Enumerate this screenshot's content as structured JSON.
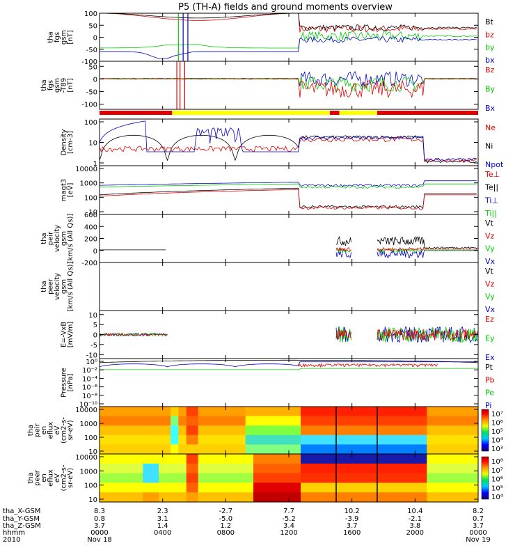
{
  "title": "P5 (TH-A) fields and ground moments overview",
  "colors": {
    "black": "#000000",
    "red": "#e00000",
    "green": "#00cc00",
    "blue": "#0000cc",
    "yellow": "#ffff00"
  },
  "chart_data": {
    "type": "line",
    "x_axis": {
      "time_ticks": [
        "0000",
        "0400",
        "0800",
        "1200",
        "1600",
        "2000",
        "0000"
      ],
      "tick_hours": [
        0,
        4,
        8,
        12,
        16,
        20,
        24
      ],
      "x_gsm": [
        "8.3",
        "2.3",
        "-2.7",
        "7.7",
        "10.2",
        "10.4",
        "8.2"
      ],
      "y_gsm": [
        "0.8",
        "3.1",
        "-5.0",
        "-5.2",
        "-3.9",
        "-2.1",
        "0.7"
      ],
      "z_gsm": [
        "3.7",
        "1.4",
        "1.2",
        "3.4",
        "3.7",
        "3.8",
        "3.7"
      ],
      "row_labels": [
        "tha_X-GSM",
        "tha_Y-GSM",
        "tha_Z-GSM",
        "hhmm",
        "2010"
      ],
      "date_start": "Nov 18",
      "date_end": "Nov 19"
    },
    "panels": [
      {
        "id": "fgs",
        "ylabel": [
          "tha",
          "fgs",
          "gsm",
          "[nT]"
        ],
        "ytick_labels": [
          "100",
          "50",
          "0",
          "-50",
          "-100"
        ],
        "yticks": [
          100,
          50,
          0,
          -50,
          -100
        ],
        "ylim": [
          -100,
          100
        ],
        "legend": [
          {
            "name": "Bt",
            "color": "#000000"
          },
          {
            "name": "bz",
            "color": "#e00000"
          },
          {
            "name": "by",
            "color": "#00cc00"
          },
          {
            "name": "bx",
            "color": "#0000cc"
          }
        ]
      },
      {
        "id": "t89",
        "ylabel": [
          "tha",
          "fgs",
          "gsm",
          "-T89",
          "[nT]"
        ],
        "ytick_labels": [
          "50",
          "0",
          "-50",
          "-100"
        ],
        "yticks": [
          50,
          0,
          -50,
          -100
        ],
        "ylim": [
          -120,
          70
        ],
        "legend": [
          {
            "name": "Bz",
            "color": "#e00000"
          },
          {
            "name": "By",
            "color": "#00cc00"
          },
          {
            "name": "Bx",
            "color": "#0000cc"
          }
        ]
      },
      {
        "id": "density",
        "ylabel": [
          "Density",
          "[cm-3]"
        ],
        "ytick_labels": [
          "100",
          "10",
          "1"
        ],
        "log": true,
        "ylim": [
          0.5,
          200
        ],
        "legend": [
          {
            "name": "Ne",
            "color": "#e00000"
          },
          {
            "name": "Ni",
            "color": "#000000"
          },
          {
            "name": "Npot",
            "color": "#0000cc"
          }
        ]
      },
      {
        "id": "temp",
        "ylabel": [
          "magt3",
          "[eV]"
        ],
        "ytick_labels": [
          "10000",
          "1000",
          "100",
          "10"
        ],
        "log": true,
        "ylim": [
          10,
          30000
        ],
        "legend": [
          {
            "name": "Te⊥",
            "color": "#e00000"
          },
          {
            "name": "Te||",
            "color": "#000000"
          },
          {
            "name": "Ti⊥",
            "color": "#0000cc"
          },
          {
            "name": "Ti||",
            "color": "#00cc00"
          }
        ]
      },
      {
        "id": "peir_v",
        "ylabel": [
          "tha",
          "peir",
          "velocity",
          "gsm",
          "[km/s (All Qs)]"
        ],
        "ytick_labels": [
          "600",
          "400",
          "200",
          "0",
          "-200"
        ],
        "yticks": [
          600,
          400,
          200,
          0,
          -200
        ],
        "ylim": [
          -200,
          600
        ],
        "legend": [
          {
            "name": "Vt",
            "color": "#000000"
          },
          {
            "name": "Vz",
            "color": "#e00000"
          },
          {
            "name": "Vy",
            "color": "#00cc00"
          },
          {
            "name": "Vx",
            "color": "#0000cc"
          }
        ]
      },
      {
        "id": "peer_v",
        "ylabel": [
          "tha",
          "peer",
          "velocity",
          "gsm",
          "[km/s (All Qs)]"
        ],
        "ytick_labels": [],
        "ylim": [
          -200,
          600
        ],
        "legend": [
          {
            "name": "Vt",
            "color": "#000000"
          },
          {
            "name": "Vz",
            "color": "#e00000"
          },
          {
            "name": "Vy",
            "color": "#00cc00"
          },
          {
            "name": "Vx",
            "color": "#0000cc"
          }
        ]
      },
      {
        "id": "efield",
        "ylabel": [
          "E=-VxB",
          "[mV/m]"
        ],
        "ytick_labels": [
          "10",
          "5",
          "0",
          "-5",
          "-10"
        ],
        "yticks": [
          10,
          5,
          0,
          -5,
          -10
        ],
        "ylim": [
          -12,
          12
        ],
        "legend": [
          {
            "name": "Ez",
            "color": "#e00000"
          },
          {
            "name": "Ey",
            "color": "#00cc00"
          },
          {
            "name": "Ex",
            "color": "#0000cc"
          }
        ]
      },
      {
        "id": "pressure",
        "ylabel": [
          "Pressure",
          "[nPa]"
        ],
        "ytick_labels": [
          "10⁰",
          "10⁻²",
          "10⁻⁴",
          "10⁻⁶",
          "10⁻⁸",
          "10⁻¹⁰"
        ],
        "log": true,
        "ylim": [
          1e-11,
          5
        ],
        "legend": [
          {
            "name": "Pt",
            "color": "#000000"
          },
          {
            "name": "Pb",
            "color": "#e00000"
          },
          {
            "name": "Pe",
            "color": "#00cc00"
          },
          {
            "name": "Pi",
            "color": "#0000cc"
          }
        ]
      },
      {
        "id": "peir_spec",
        "type": "heatmap",
        "ylabel": [
          "tha",
          "peir",
          "en",
          "eflux",
          "eV",
          "(cm2-s-",
          "sr-eV)"
        ],
        "ytick_labels": [
          "10000",
          "1000",
          "100",
          "10"
        ],
        "log": true,
        "colorbar_labels": [
          "10⁷",
          "10⁶",
          "10⁵",
          "10⁴",
          "10³"
        ]
      },
      {
        "id": "peer_spec",
        "type": "heatmap",
        "ylabel": [
          "tha",
          "peer",
          "en",
          "eflux",
          "eV",
          "(cm2-s-",
          "sr-eV)"
        ],
        "ytick_labels": [
          "10000",
          "1000",
          "100",
          "10"
        ],
        "log": true,
        "colorbar_labels": [
          "10⁸",
          "10⁷",
          "10⁶",
          "10⁵",
          "10⁴"
        ]
      }
    ],
    "status_bar": [
      {
        "from": 0,
        "to": 4.6,
        "color": "#e00000"
      },
      {
        "from": 4.6,
        "to": 14.6,
        "color": "#ffff00"
      },
      {
        "from": 14.6,
        "to": 15.2,
        "color": "#e00000"
      },
      {
        "from": 15.2,
        "to": 17.6,
        "color": "#ffff00"
      },
      {
        "from": 17.6,
        "to": 24,
        "color": "#e00000"
      }
    ]
  }
}
